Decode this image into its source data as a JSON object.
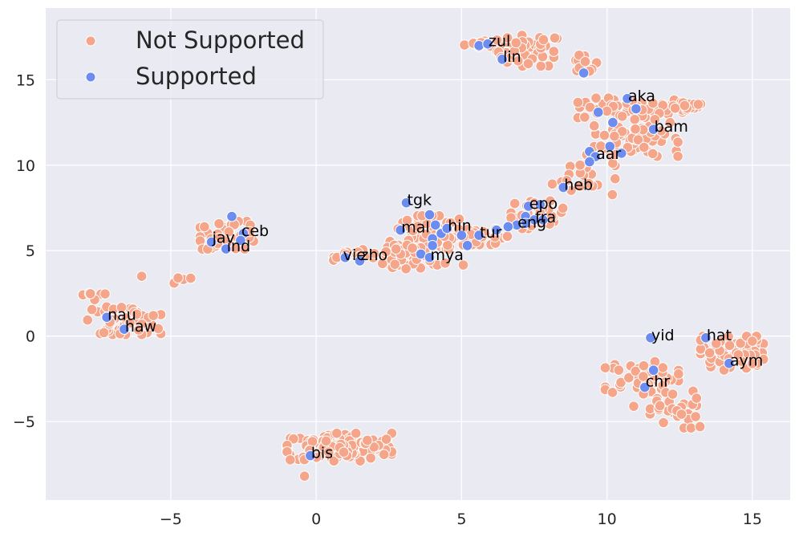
{
  "chart_data": {
    "type": "scatter",
    "title": "",
    "xlabel": "",
    "ylabel": "",
    "xlim": [
      -9.3,
      16.3
    ],
    "ylim": [
      -9.6,
      19.2
    ],
    "x_ticks": [
      -5,
      0,
      5,
      10,
      15
    ],
    "y_ticks": [
      -5,
      0,
      5,
      10,
      15
    ],
    "x_tick_labels": [
      "−5",
      "0",
      "5",
      "10",
      "15"
    ],
    "y_tick_labels": [
      "−5",
      "0",
      "5",
      "10",
      "15"
    ],
    "grid": true,
    "legend": {
      "position": "top-left",
      "entries": [
        {
          "label": "Not Supported",
          "color": "#f4a58a"
        },
        {
          "label": "Supported",
          "color": "#6c8cf0"
        }
      ]
    },
    "series": [
      {
        "name": "Not Supported",
        "color": "#f4a58a",
        "clusters": [
          {
            "cx": 6.0,
            "cy": 17.1,
            "sx": 0.5,
            "sy": 0.12,
            "n": 18
          },
          {
            "cx": 7.3,
            "cy": 16.7,
            "sx": 0.6,
            "sy": 0.5,
            "n": 45
          },
          {
            "cx": 9.2,
            "cy": 15.9,
            "sx": 0.25,
            "sy": 0.3,
            "n": 12
          },
          {
            "cx": 10.8,
            "cy": 13.3,
            "sx": 1.0,
            "sy": 0.35,
            "n": 55
          },
          {
            "cx": 12.7,
            "cy": 13.5,
            "sx": 0.4,
            "sy": 0.15,
            "n": 15
          },
          {
            "cx": 11.0,
            "cy": 11.6,
            "sx": 0.8,
            "sy": 0.6,
            "n": 70
          },
          {
            "cx": 9.2,
            "cy": 9.4,
            "sx": 0.6,
            "sy": 0.7,
            "n": 25
          },
          {
            "cx": 7.6,
            "cy": 7.1,
            "sx": 0.5,
            "sy": 0.45,
            "n": 30
          },
          {
            "cx": 5.6,
            "cy": 5.8,
            "sx": 0.6,
            "sy": 0.25,
            "n": 35
          },
          {
            "cx": 3.8,
            "cy": 5.6,
            "sx": 0.7,
            "sy": 0.8,
            "n": 90
          },
          {
            "cx": 3.0,
            "cy": 4.6,
            "sx": 0.4,
            "sy": 0.4,
            "n": 45
          },
          {
            "cx": 1.5,
            "cy": 4.8,
            "sx": 0.5,
            "sy": 0.2,
            "n": 20
          },
          {
            "cx": -3.0,
            "cy": 5.9,
            "sx": 0.55,
            "sy": 0.45,
            "n": 45
          },
          {
            "cx": -4.6,
            "cy": 3.3,
            "sx": 0.2,
            "sy": 0.15,
            "n": 5
          },
          {
            "cx": -6.6,
            "cy": 0.9,
            "sx": 0.7,
            "sy": 0.45,
            "n": 50
          },
          {
            "cx": -7.8,
            "cy": 2.4,
            "sx": 0.3,
            "sy": 0.15,
            "n": 6
          },
          {
            "cx": 0.8,
            "cy": -6.5,
            "sx": 1.0,
            "sy": 0.45,
            "n": 140
          },
          {
            "cx": 11.2,
            "cy": -2.4,
            "sx": 0.7,
            "sy": 0.5,
            "n": 55
          },
          {
            "cx": 12.0,
            "cy": -4.3,
            "sx": 0.6,
            "sy": 0.6,
            "n": 30
          },
          {
            "cx": 14.3,
            "cy": -1.0,
            "sx": 0.6,
            "sy": 0.55,
            "n": 65
          }
        ],
        "points": [
          [
            -6.0,
            3.5
          ],
          [
            -0.4,
            -8.2
          ],
          [
            -7.3,
            0.2
          ],
          [
            -5.6,
            1.2
          ],
          [
            15.0,
            -0.3
          ],
          [
            13.2,
            -5.3
          ]
        ]
      },
      {
        "name": "Supported",
        "color": "#6c8cf0",
        "points": [
          [
            5.6,
            17.0
          ],
          [
            5.9,
            17.1
          ],
          [
            6.4,
            16.2
          ],
          [
            9.2,
            15.4
          ],
          [
            10.7,
            13.9
          ],
          [
            11.0,
            13.3
          ],
          [
            9.7,
            13.1
          ],
          [
            10.2,
            12.5
          ],
          [
            11.6,
            12.1
          ],
          [
            10.1,
            11.1
          ],
          [
            10.5,
            10.7
          ],
          [
            9.4,
            10.8
          ],
          [
            9.6,
            10.5
          ],
          [
            9.4,
            10.2
          ],
          [
            8.5,
            8.7
          ],
          [
            7.3,
            7.6
          ],
          [
            7.7,
            7.7
          ],
          [
            7.2,
            7.0
          ],
          [
            7.5,
            6.8
          ],
          [
            7.2,
            6.6
          ],
          [
            7.8,
            6.8
          ],
          [
            6.9,
            6.5
          ],
          [
            6.6,
            6.4
          ],
          [
            5.6,
            5.9
          ],
          [
            5.2,
            5.3
          ],
          [
            6.2,
            6.2
          ],
          [
            5.0,
            5.9
          ],
          [
            3.9,
            7.1
          ],
          [
            3.1,
            7.8
          ],
          [
            4.1,
            6.5
          ],
          [
            4.3,
            6.0
          ],
          [
            4.5,
            6.3
          ],
          [
            4.0,
            5.7
          ],
          [
            4.0,
            5.3
          ],
          [
            3.6,
            4.8
          ],
          [
            3.9,
            4.6
          ],
          [
            2.9,
            6.2
          ],
          [
            1.0,
            4.6
          ],
          [
            1.5,
            4.4
          ],
          [
            -3.6,
            5.5
          ],
          [
            -3.1,
            5.1
          ],
          [
            -2.5,
            6.0
          ],
          [
            -2.6,
            5.6
          ],
          [
            -2.9,
            7.0
          ],
          [
            -7.2,
            1.1
          ],
          [
            -6.6,
            0.4
          ],
          [
            -0.2,
            -7.0
          ],
          [
            11.5,
            -0.1
          ],
          [
            11.6,
            -2.0
          ],
          [
            11.3,
            -3.0
          ],
          [
            13.4,
            -0.1
          ],
          [
            14.2,
            -1.6
          ]
        ]
      }
    ],
    "labels": [
      {
        "text": "zul",
        "x": 5.9,
        "y": 17.1
      },
      {
        "text": "lin",
        "x": 6.4,
        "y": 16.2
      },
      {
        "text": "aka",
        "x": 10.7,
        "y": 13.9
      },
      {
        "text": "bam",
        "x": 11.6,
        "y": 12.1
      },
      {
        "text": "aar",
        "x": 9.6,
        "y": 10.5
      },
      {
        "text": "heb",
        "x": 8.5,
        "y": 8.7
      },
      {
        "text": "epo",
        "x": 7.3,
        "y": 7.6
      },
      {
        "text": "fra",
        "x": 7.5,
        "y": 6.8
      },
      {
        "text": "eng",
        "x": 6.9,
        "y": 6.5
      },
      {
        "text": "tgk",
        "x": 3.1,
        "y": 7.8
      },
      {
        "text": "hin",
        "x": 4.5,
        "y": 6.3
      },
      {
        "text": "mal",
        "x": 2.9,
        "y": 6.2
      },
      {
        "text": "tur",
        "x": 5.6,
        "y": 5.9
      },
      {
        "text": "mya",
        "x": 3.9,
        "y": 4.6
      },
      {
        "text": "vie",
        "x": 0.9,
        "y": 4.6
      },
      {
        "text": "zho",
        "x": 1.5,
        "y": 4.6
      },
      {
        "text": "ceb",
        "x": -2.6,
        "y": 6.0
      },
      {
        "text": "jav",
        "x": -3.6,
        "y": 5.6
      },
      {
        "text": "ind",
        "x": -3.1,
        "y": 5.1
      },
      {
        "text": "nau",
        "x": -7.2,
        "y": 1.1
      },
      {
        "text": "haw",
        "x": -6.6,
        "y": 0.4
      },
      {
        "text": "bis",
        "x": -0.2,
        "y": -7.0
      },
      {
        "text": "yid",
        "x": 11.5,
        "y": -0.1
      },
      {
        "text": "chr",
        "x": 11.3,
        "y": -2.8
      },
      {
        "text": "hat",
        "x": 13.4,
        "y": -0.1
      },
      {
        "text": "aym",
        "x": 14.2,
        "y": -1.6
      }
    ]
  }
}
